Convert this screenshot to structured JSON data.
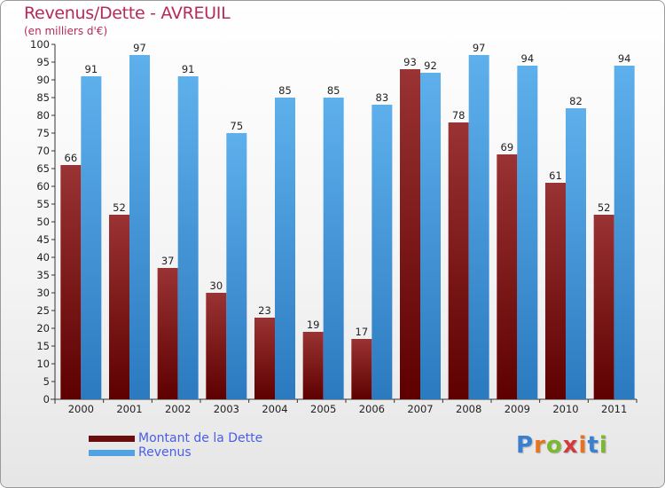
{
  "chart_data": {
    "type": "bar",
    "title": "Revenus/Dette - AVREUIL",
    "subtitle": "(en milliers d'€)",
    "categories": [
      "2000",
      "2001",
      "2002",
      "2003",
      "2004",
      "2005",
      "2006",
      "2007",
      "2008",
      "2009",
      "2010",
      "2011"
    ],
    "series": [
      {
        "name": "Montant de la Dette",
        "color": "#7a1a1a",
        "values": [
          66,
          52,
          37,
          30,
          23,
          19,
          17,
          93,
          78,
          69,
          61,
          52
        ]
      },
      {
        "name": "Revenus",
        "color": "#4fa3e3",
        "values": [
          91,
          97,
          91,
          75,
          85,
          85,
          83,
          92,
          97,
          94,
          82,
          94
        ]
      }
    ],
    "ylim": [
      0,
      100
    ],
    "ytick_step": 5,
    "grid": false,
    "legend_position": "bottom-left"
  },
  "logo": {
    "text": "Proxiti",
    "colors": [
      "#3a7fd0",
      "#e8731e",
      "#7ab830",
      "#d23b3b",
      "#e8731e",
      "#3a7fd0",
      "#7ab830"
    ]
  }
}
